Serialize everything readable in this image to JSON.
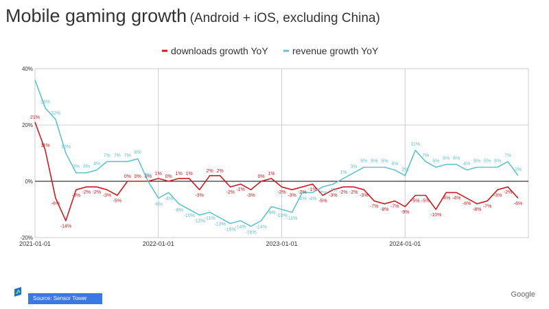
{
  "title": {
    "main": "Mobile gaming growth",
    "sub": "(Android + iOS, excluding China)"
  },
  "colors": {
    "downloads": "#d0191f",
    "revenue": "#5ec3d0",
    "grid": "#cccccc",
    "zero": "#000000"
  },
  "chart_data": {
    "type": "line",
    "title": "Mobile gaming growth (Android + iOS, excluding China)",
    "xlabel": "",
    "ylabel": "",
    "x_unit": "months since 2021-01",
    "xlim": [
      0,
      48
    ],
    "ylim": [
      -20,
      40
    ],
    "y_ticks": [
      {
        "value": -20,
        "label": "-20%"
      },
      {
        "value": 0,
        "label": "0%"
      },
      {
        "value": 20,
        "label": "20%"
      },
      {
        "value": 40,
        "label": "40%"
      }
    ],
    "x_ticks": [
      {
        "value": 0,
        "label": "2021-01-01"
      },
      {
        "value": 12,
        "label": "2022-01-01"
      },
      {
        "value": 24,
        "label": "2023-01-01"
      },
      {
        "value": 36,
        "label": "2024-01-01"
      }
    ],
    "legend_position": "top",
    "series": [
      {
        "name": "downloads growth YoY",
        "color": "#d0191f",
        "x": [
          0,
          1,
          2,
          3,
          4,
          5,
          6,
          7,
          8,
          9,
          10,
          11,
          12,
          13,
          14,
          15,
          16,
          17,
          18,
          19,
          20,
          21,
          22,
          23,
          24,
          25,
          26,
          27,
          28,
          29,
          30,
          31,
          32,
          33,
          34,
          35,
          36,
          37,
          38,
          39,
          40,
          41,
          42,
          43,
          44,
          45,
          46,
          47
        ],
        "y": [
          21,
          11,
          -6,
          -14,
          -3,
          -2,
          -2,
          -3,
          -5,
          0,
          0,
          0,
          1,
          0,
          1,
          1,
          -3,
          2,
          2,
          -2,
          -1,
          -3,
          0,
          1,
          -2,
          -3,
          -2,
          -1,
          -5,
          -3,
          -2,
          -2,
          -3,
          -7,
          -8,
          -7,
          -9,
          -5,
          -5,
          -10,
          -4,
          -4,
          -6,
          -8,
          -7,
          -3,
          -2,
          -6
        ],
        "labels": [
          "21%",
          "11%",
          "-6%",
          "-14%",
          "-3%",
          "-2%",
          "-2%",
          "-3%",
          "-5%",
          "0%",
          "0%",
          "0%",
          "1%",
          "0%",
          "1%",
          "1%",
          "-3%",
          "2%",
          "2%",
          "-2%",
          "-1%",
          "-3%",
          "0%",
          "1%",
          "-2%",
          "-3%",
          "-2%",
          "-1%",
          "-5%",
          "-3%",
          "-2%",
          "-2%",
          "-3%",
          "-7%",
          "-8%",
          "-7%",
          "-9%",
          "-5%",
          "-5%",
          "-10%",
          "-4%",
          "-4%",
          "-6%",
          "-8%",
          "-7%",
          "-3%",
          "-2%",
          "-6%"
        ]
      },
      {
        "name": "revenue growth YoY",
        "color": "#5ec3d0",
        "x": [
          0,
          1,
          2,
          3,
          4,
          5,
          6,
          7,
          8,
          9,
          10,
          11,
          12,
          13,
          14,
          15,
          16,
          17,
          18,
          19,
          20,
          21,
          22,
          23,
          24,
          25,
          26,
          27,
          28,
          29,
          30,
          31,
          32,
          33,
          34,
          35,
          36,
          37,
          38,
          39,
          40,
          41,
          42,
          43,
          44,
          45,
          46,
          47
        ],
        "y": [
          36,
          26,
          22,
          10,
          3,
          3,
          4,
          7,
          7,
          7,
          8,
          0,
          -6,
          -4,
          -8,
          -10,
          -12,
          -11,
          -13,
          -15,
          -14,
          -16,
          -14,
          -9,
          -10,
          -11,
          -4,
          -4,
          -2,
          -1,
          1,
          3,
          5,
          5,
          5,
          4,
          2,
          11,
          7,
          5,
          6,
          6,
          4,
          5,
          5,
          5,
          7,
          2
        ],
        "labels": [
          "",
          "26%",
          "22%",
          "10%",
          "3%",
          "3%",
          "4%",
          "7%",
          "7%",
          "7%",
          "8%",
          "0%",
          "-6%",
          "-4%",
          "-8%",
          "-10%",
          "-12%",
          "-11%",
          "-13%",
          "-15%",
          "-14%",
          "-16%",
          "-14%",
          "-9%",
          "-10%",
          "-11%",
          "-4%",
          "-4%",
          "-2%",
          "-1%",
          "1%",
          "3%",
          "5%",
          "5%",
          "5%",
          "4%",
          "2%",
          "11%",
          "7%",
          "5%",
          "6%",
          "6%",
          "4%",
          "5%",
          "5%",
          "5%",
          "7%",
          "2%"
        ]
      }
    ]
  },
  "footer": {
    "source": "Source: Sensor Tower",
    "brand": "Google"
  }
}
